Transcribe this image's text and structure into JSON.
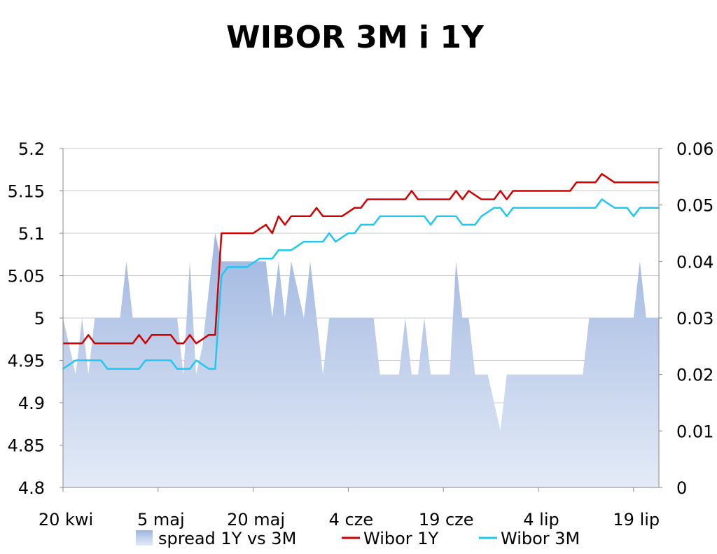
{
  "chart_data": {
    "type": "line",
    "title": "WIBOR 3M i 1Y",
    "x_tick_labels": [
      "20 kwi",
      "5 maj",
      "20 maj",
      "4 cze",
      "19 cze",
      "4 lip",
      "19 lip"
    ],
    "x_tick_days": [
      0,
      15,
      30,
      45,
      60,
      75,
      90
    ],
    "y_left": {
      "ylim": [
        4.8,
        5.2
      ],
      "ticks": [
        "4.8",
        "4.85",
        "4.9",
        "4.95",
        "5",
        "5.05",
        "5.1",
        "5.15",
        "5.2"
      ]
    },
    "y_right": {
      "ylim": [
        0,
        0.06
      ],
      "ticks": [
        "0",
        "0.01",
        "0.02",
        "0.03",
        "0.04",
        "0.05",
        "0.06"
      ]
    },
    "grid": true,
    "legend_position": "bottom",
    "colors": {
      "spread": "#b4c6e7",
      "wibor_1y": "#d10000",
      "wibor_3m": "#1ec8f0",
      "grid": "#c8c8c8"
    },
    "series": [
      {
        "name": "spread 1Y vs 3M",
        "type": "area",
        "axis": "right",
        "x": [
          0,
          1,
          2,
          3,
          4,
          5,
          6,
          7,
          8,
          9,
          10,
          11,
          12,
          13,
          14,
          15,
          16,
          17,
          18,
          19,
          20,
          21,
          22,
          23,
          24,
          25,
          26,
          27,
          28,
          29,
          30,
          31,
          32,
          33,
          34,
          35,
          36,
          37,
          38,
          39,
          40,
          41,
          42,
          43,
          44,
          45,
          46,
          47,
          48,
          49,
          50,
          51,
          52,
          53,
          54,
          55,
          56,
          57,
          58,
          59,
          60,
          61,
          62,
          63,
          64,
          65,
          66,
          67,
          68,
          69,
          70,
          71,
          72,
          73,
          74,
          75,
          76,
          77,
          78,
          79,
          80,
          81,
          82,
          83,
          84,
          85,
          86,
          87,
          88,
          89,
          90,
          91,
          92,
          93,
          94
        ],
        "values": [
          0.03,
          0.025,
          0.02,
          0.03,
          0.02,
          0.03,
          0.03,
          0.03,
          0.03,
          0.03,
          0.04,
          0.03,
          0.03,
          0.03,
          0.03,
          0.03,
          0.03,
          0.03,
          0.03,
          0.02,
          0.04,
          0.02,
          0.025,
          0.035,
          0.045,
          0.04,
          0.04,
          0.04,
          0.04,
          0.04,
          0.04,
          0.04,
          0.04,
          0.03,
          0.04,
          0.03,
          0.04,
          0.035,
          0.03,
          0.04,
          0.03,
          0.02,
          0.03,
          0.03,
          0.03,
          0.03,
          0.03,
          0.03,
          0.03,
          0.03,
          0.02,
          0.02,
          0.02,
          0.02,
          0.03,
          0.02,
          0.02,
          0.03,
          0.02,
          0.02,
          0.02,
          0.02,
          0.04,
          0.03,
          0.03,
          0.02,
          0.02,
          0.02,
          0.015,
          0.01,
          0.02,
          0.02,
          0.02,
          0.02,
          0.02,
          0.02,
          0.02,
          0.02,
          0.02,
          0.02,
          0.02,
          0.02,
          0.02,
          0.03,
          0.03,
          0.03,
          0.03,
          0.03,
          0.03,
          0.03,
          0.03,
          0.04,
          0.03,
          0.03,
          0.03
        ]
      },
      {
        "name": "Wibor 1Y",
        "type": "line",
        "axis": "left",
        "x": [
          0,
          1,
          2,
          3,
          4,
          5,
          6,
          7,
          8,
          9,
          10,
          11,
          12,
          13,
          14,
          15,
          16,
          17,
          18,
          19,
          20,
          21,
          22,
          23,
          24,
          25,
          26,
          27,
          28,
          29,
          30,
          31,
          32,
          33,
          34,
          35,
          36,
          37,
          38,
          39,
          40,
          41,
          42,
          43,
          44,
          45,
          46,
          47,
          48,
          49,
          50,
          51,
          52,
          53,
          54,
          55,
          56,
          57,
          58,
          59,
          60,
          61,
          62,
          63,
          64,
          65,
          66,
          67,
          68,
          69,
          70,
          71,
          72,
          73,
          74,
          75,
          76,
          77,
          78,
          79,
          80,
          81,
          82,
          83,
          84,
          85,
          86,
          87,
          88,
          89,
          90,
          91,
          92,
          93,
          94
        ],
        "values": [
          4.97,
          4.97,
          4.97,
          4.97,
          4.98,
          4.97,
          4.97,
          4.97,
          4.97,
          4.97,
          4.97,
          4.97,
          4.98,
          4.97,
          4.98,
          4.98,
          4.98,
          4.98,
          4.97,
          4.97,
          4.98,
          4.97,
          4.975,
          4.98,
          4.98,
          5.1,
          5.1,
          5.1,
          5.1,
          5.1,
          5.1,
          5.105,
          5.11,
          5.1,
          5.12,
          5.11,
          5.12,
          5.12,
          5.12,
          5.12,
          5.13,
          5.12,
          5.12,
          5.12,
          5.12,
          5.125,
          5.13,
          5.13,
          5.14,
          5.14,
          5.14,
          5.14,
          5.14,
          5.14,
          5.14,
          5.15,
          5.14,
          5.14,
          5.14,
          5.14,
          5.14,
          5.14,
          5.15,
          5.14,
          5.15,
          5.145,
          5.14,
          5.14,
          5.14,
          5.15,
          5.14,
          5.15,
          5.15,
          5.15,
          5.15,
          5.15,
          5.15,
          5.15,
          5.15,
          5.15,
          5.15,
          5.16,
          5.16,
          5.16,
          5.16,
          5.17,
          5.165,
          5.16,
          5.16,
          5.16,
          5.16,
          5.16,
          5.16,
          5.16,
          5.16
        ]
      },
      {
        "name": "Wibor 3M",
        "type": "line",
        "axis": "left",
        "x": [
          0,
          1,
          2,
          3,
          4,
          5,
          6,
          7,
          8,
          9,
          10,
          11,
          12,
          13,
          14,
          15,
          16,
          17,
          18,
          19,
          20,
          21,
          22,
          23,
          24,
          25,
          26,
          27,
          28,
          29,
          30,
          31,
          32,
          33,
          34,
          35,
          36,
          37,
          38,
          39,
          40,
          41,
          42,
          43,
          44,
          45,
          46,
          47,
          48,
          49,
          50,
          51,
          52,
          53,
          54,
          55,
          56,
          57,
          58,
          59,
          60,
          61,
          62,
          63,
          64,
          65,
          66,
          67,
          68,
          69,
          70,
          71,
          72,
          73,
          74,
          75,
          76,
          77,
          78,
          79,
          80,
          81,
          82,
          83,
          84,
          85,
          86,
          87,
          88,
          89,
          90,
          91,
          92,
          93,
          94
        ],
        "values": [
          4.94,
          4.945,
          4.95,
          4.95,
          4.95,
          4.95,
          4.95,
          4.94,
          4.94,
          4.94,
          4.94,
          4.94,
          4.94,
          4.95,
          4.95,
          4.95,
          4.95,
          4.95,
          4.94,
          4.94,
          4.94,
          4.95,
          4.945,
          4.94,
          4.94,
          5.05,
          5.06,
          5.06,
          5.06,
          5.06,
          5.065,
          5.07,
          5.07,
          5.07,
          5.08,
          5.08,
          5.08,
          5.085,
          5.09,
          5.09,
          5.09,
          5.09,
          5.1,
          5.09,
          5.095,
          5.1,
          5.1,
          5.11,
          5.11,
          5.11,
          5.12,
          5.12,
          5.12,
          5.12,
          5.12,
          5.12,
          5.12,
          5.12,
          5.11,
          5.12,
          5.12,
          5.12,
          5.12,
          5.11,
          5.11,
          5.11,
          5.12,
          5.125,
          5.13,
          5.13,
          5.12,
          5.13,
          5.13,
          5.13,
          5.13,
          5.13,
          5.13,
          5.13,
          5.13,
          5.13,
          5.13,
          5.13,
          5.13,
          5.13,
          5.13,
          5.14,
          5.135,
          5.13,
          5.13,
          5.13,
          5.12,
          5.13,
          5.13,
          5.13,
          5.13
        ]
      }
    ]
  }
}
